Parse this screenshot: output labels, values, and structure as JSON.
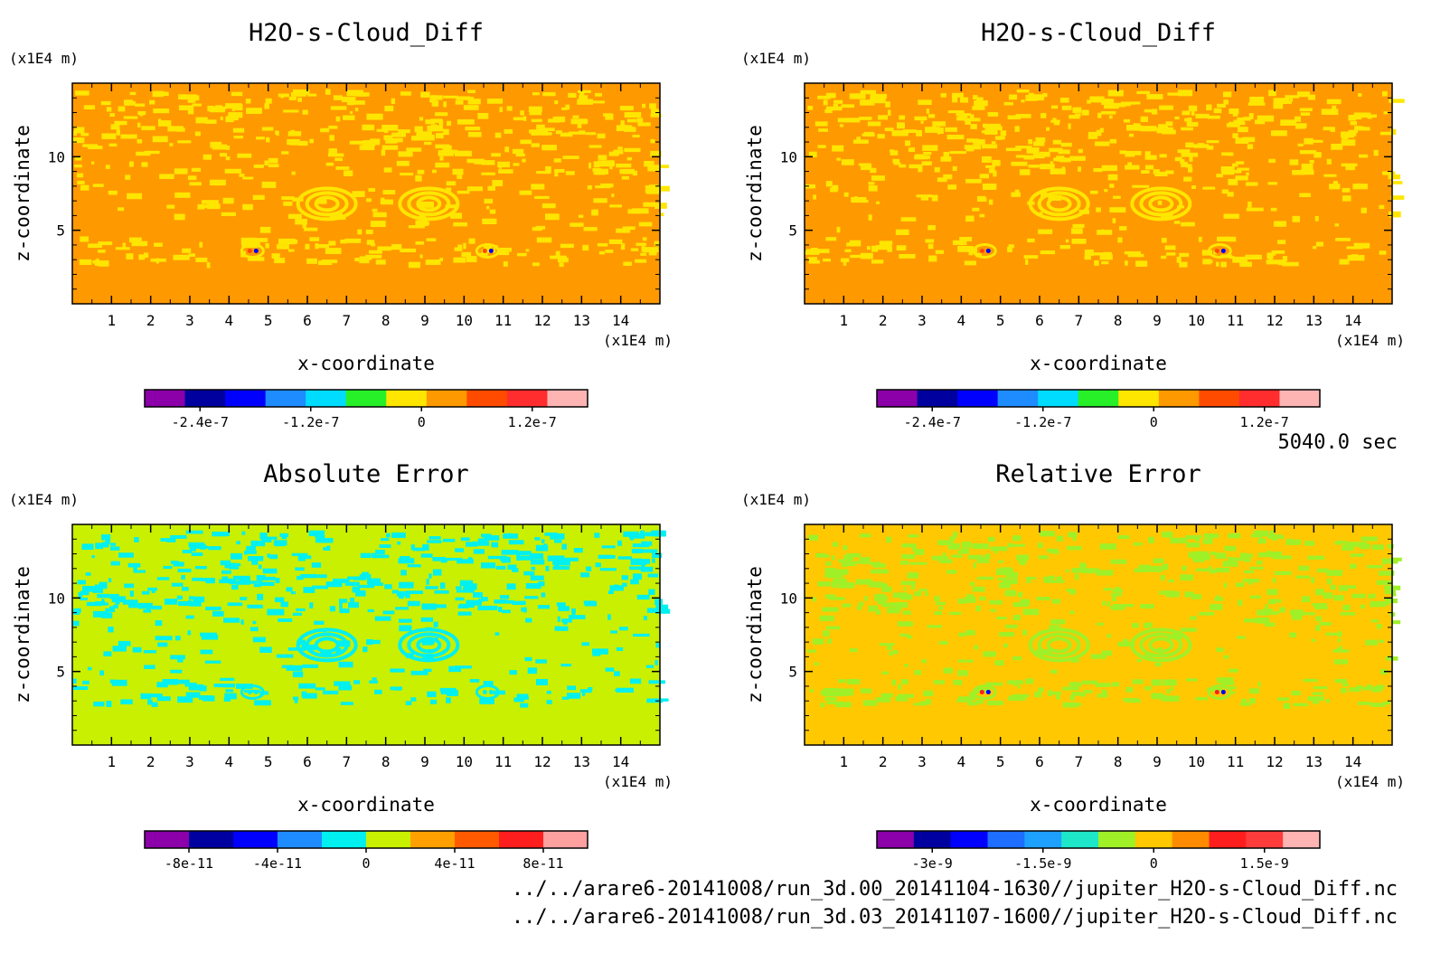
{
  "chart_data": [
    {
      "type": "heatmap",
      "title": "H2O-s-Cloud_Diff",
      "xlabel": "x-coordinate",
      "ylabel": "z-coordinate",
      "x_unit": "(x1E4 m)",
      "y_unit": "(x1E4 m)",
      "xlim": [
        0,
        15
      ],
      "ylim": [
        0,
        15
      ],
      "xticks": [
        "1",
        "2",
        "3",
        "4",
        "5",
        "6",
        "7",
        "8",
        "9",
        "10",
        "11",
        "12",
        "13",
        "14"
      ],
      "yticks": [
        "5",
        "10"
      ],
      "background_color": "#ff9900",
      "colorbar": {
        "colors": [
          "#8b00a8",
          "#00009e",
          "#0000ff",
          "#1e8cff",
          "#00dcff",
          "#28f028",
          "#ffe600",
          "#ff9900",
          "#ff4b00",
          "#ff2d2d",
          "#ffb4b4"
        ],
        "labels": [
          "-2.4e-7",
          "-1.2e-7",
          "0",
          "1.2e-7"
        ]
      }
    },
    {
      "type": "heatmap",
      "title": "H2O-s-Cloud_Diff",
      "xlabel": "x-coordinate",
      "ylabel": "z-coordinate",
      "x_unit": "(x1E4 m)",
      "y_unit": "(x1E4 m)",
      "xlim": [
        0,
        15
      ],
      "ylim": [
        0,
        15
      ],
      "xticks": [
        "1",
        "2",
        "3",
        "4",
        "5",
        "6",
        "7",
        "8",
        "9",
        "10",
        "11",
        "12",
        "13",
        "14"
      ],
      "yticks": [
        "5",
        "10"
      ],
      "background_color": "#ff9900",
      "colorbar": {
        "colors": [
          "#8b00a8",
          "#00009e",
          "#0000ff",
          "#1e8cff",
          "#00dcff",
          "#28f028",
          "#ffe600",
          "#ff9900",
          "#ff4b00",
          "#ff2d2d",
          "#ffb4b4"
        ],
        "labels": [
          "-2.4e-7",
          "-1.2e-7",
          "0",
          "1.2e-7"
        ]
      }
    },
    {
      "type": "heatmap",
      "title": "Absolute Error",
      "xlabel": "x-coordinate",
      "ylabel": "z-coordinate",
      "x_unit": "(x1E4 m)",
      "y_unit": "(x1E4 m)",
      "xlim": [
        0,
        15
      ],
      "ylim": [
        0,
        15
      ],
      "xticks": [
        "1",
        "2",
        "3",
        "4",
        "5",
        "6",
        "7",
        "8",
        "9",
        "10",
        "11",
        "12",
        "13",
        "14"
      ],
      "yticks": [
        "5",
        "10"
      ],
      "background_color": "#c8f000",
      "colorbar": {
        "colors": [
          "#8b00a8",
          "#00009e",
          "#0000ff",
          "#1e8cff",
          "#00f0f0",
          "#c8f000",
          "#ffa000",
          "#ff5a00",
          "#ff1e1e",
          "#ffa0a0"
        ],
        "labels": [
          "-8e-11",
          "-4e-11",
          "0",
          "4e-11",
          "8e-11"
        ]
      }
    },
    {
      "type": "heatmap",
      "title": "Relative Error",
      "xlabel": "x-coordinate",
      "ylabel": "z-coordinate",
      "x_unit": "(x1E4 m)",
      "y_unit": "(x1E4 m)",
      "xlim": [
        0,
        15
      ],
      "ylim": [
        0,
        15
      ],
      "xticks": [
        "1",
        "2",
        "3",
        "4",
        "5",
        "6",
        "7",
        "8",
        "9",
        "10",
        "11",
        "12",
        "13",
        "14"
      ],
      "yticks": [
        "5",
        "10"
      ],
      "background_color": "#ffc800",
      "colorbar": {
        "colors": [
          "#8b00a8",
          "#00009e",
          "#0000ff",
          "#1e6eff",
          "#1ea0ff",
          "#1ee6c8",
          "#a0f028",
          "#ffc800",
          "#ff8c00",
          "#ff1e1e",
          "#ff3c3c",
          "#ffb4b4"
        ],
        "labels": [
          "-3e-9",
          "-1.5e-9",
          "0",
          "1.5e-9"
        ]
      }
    }
  ],
  "footer": {
    "time_label": "5040.0 sec",
    "file_1": "../../arare6-20141008/run_3d.00_20141104-1630//jupiter_H2O-s-Cloud_Diff.nc",
    "file_2": "../../arare6-20141008/run_3d.03_20141107-1600//jupiter_H2O-s-Cloud_Diff.nc"
  }
}
